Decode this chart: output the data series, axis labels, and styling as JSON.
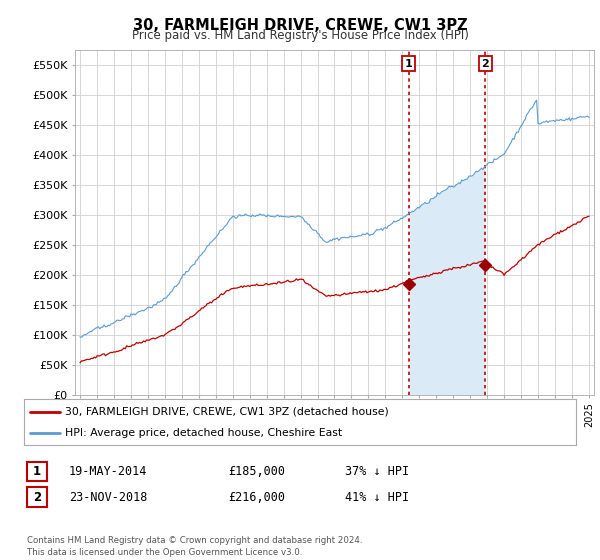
{
  "title": "30, FARMLEIGH DRIVE, CREWE, CW1 3PZ",
  "subtitle": "Price paid vs. HM Land Registry's House Price Index (HPI)",
  "ylim": [
    0,
    575000
  ],
  "yticks": [
    0,
    50000,
    100000,
    150000,
    200000,
    250000,
    300000,
    350000,
    400000,
    450000,
    500000,
    550000
  ],
  "ytick_labels": [
    "£0",
    "£50K",
    "£100K",
    "£150K",
    "£200K",
    "£250K",
    "£300K",
    "£350K",
    "£400K",
    "£450K",
    "£500K",
    "£550K"
  ],
  "hpi_color": "#5b9bd5",
  "hpi_fill_color": "#daeaf7",
  "price_color": "#c00000",
  "marker_color": "#9b0000",
  "transaction1": {
    "date": 2014.38,
    "price": 185000,
    "label": "1"
  },
  "transaction2": {
    "date": 2018.9,
    "price": 216000,
    "label": "2"
  },
  "legend_line1": "30, FARMLEIGH DRIVE, CREWE, CW1 3PZ (detached house)",
  "legend_line2": "HPI: Average price, detached house, Cheshire East",
  "table_row1": [
    "1",
    "19-MAY-2014",
    "£185,000",
    "37% ↓ HPI"
  ],
  "table_row2": [
    "2",
    "23-NOV-2018",
    "£216,000",
    "41% ↓ HPI"
  ],
  "footnote": "Contains HM Land Registry data © Crown copyright and database right 2024.\nThis data is licensed under the Open Government Licence v3.0.",
  "background_color": "#ffffff",
  "plot_bg_color": "#ffffff",
  "grid_color": "#d0d0d0",
  "vline_color": "#c00000",
  "xlim_left": 1994.7,
  "xlim_right": 2025.3
}
